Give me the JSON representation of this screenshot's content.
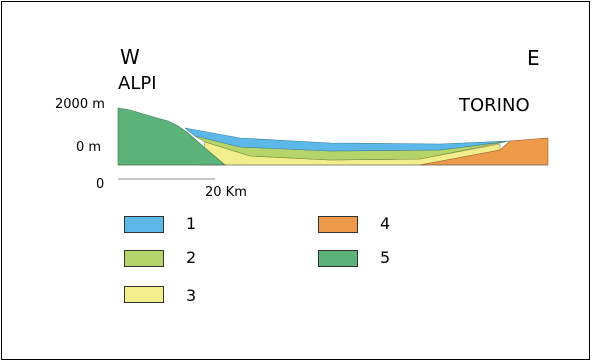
{
  "labels": {
    "west": "W",
    "east": "E",
    "alps": "ALPI",
    "torino": "TORINO",
    "elev_top": "2000 m",
    "elev_zero": "0 m",
    "scale_zero": "0",
    "scale_dist": "20 Km"
  },
  "legend": [
    {
      "label": "1",
      "color": "#5bb8e8"
    },
    {
      "label": "2",
      "color": "#b5d56b"
    },
    {
      "label": "3",
      "color": "#f2ee8c"
    },
    {
      "label": "4",
      "color": "#ee9a4b"
    },
    {
      "label": "5",
      "color": "#5cb37a"
    }
  ]
}
